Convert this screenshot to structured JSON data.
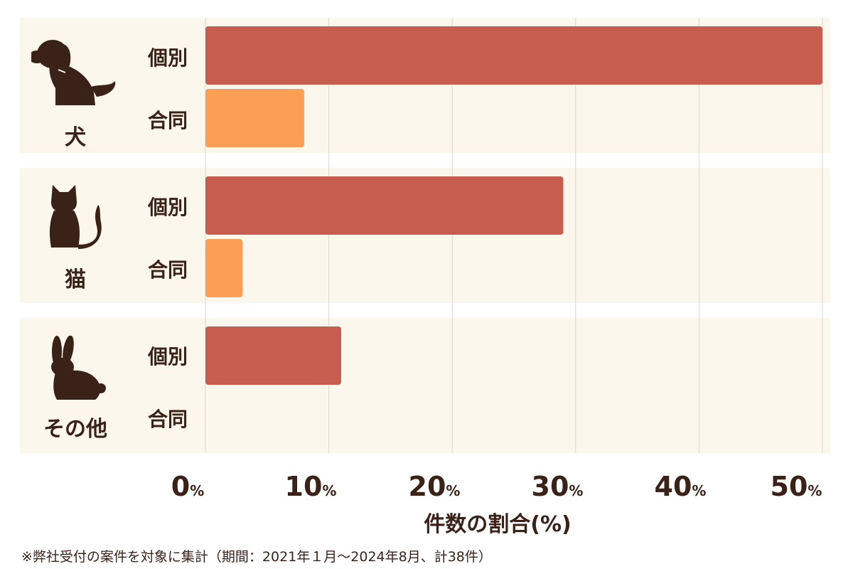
{
  "chart_data": {
    "type": "bar",
    "orientation": "horizontal",
    "categories": [
      "犬",
      "猫",
      "その他"
    ],
    "series": [
      {
        "name": "個別",
        "values": [
          50,
          29,
          11
        ],
        "color": "#c65d4f"
      },
      {
        "name": "合同",
        "values": [
          8,
          3,
          0
        ],
        "color": "#fd9e57"
      }
    ],
    "xlim": [
      0,
      50
    ],
    "xticks": [
      0,
      10,
      20,
      30,
      40,
      50
    ],
    "tick_unit": "%",
    "xlabel": "件数の割合(%)",
    "grid": true
  },
  "groups": [
    {
      "label": "犬",
      "icon": "dog-icon"
    },
    {
      "label": "猫",
      "icon": "cat-icon"
    },
    {
      "label": "その他",
      "icon": "rabbit-icon"
    }
  ],
  "row_labels": [
    "個別",
    "合同"
  ],
  "footnote": "※弊社受付の案件を対象に集計（期間：2021年１月〜2024年8月、計38件）",
  "colors": {
    "background": "#fcf7ec",
    "text": "#3b2218",
    "individual": "#c65d4f",
    "joint": "#fd9e57",
    "grid": "#ddd6cb"
  }
}
